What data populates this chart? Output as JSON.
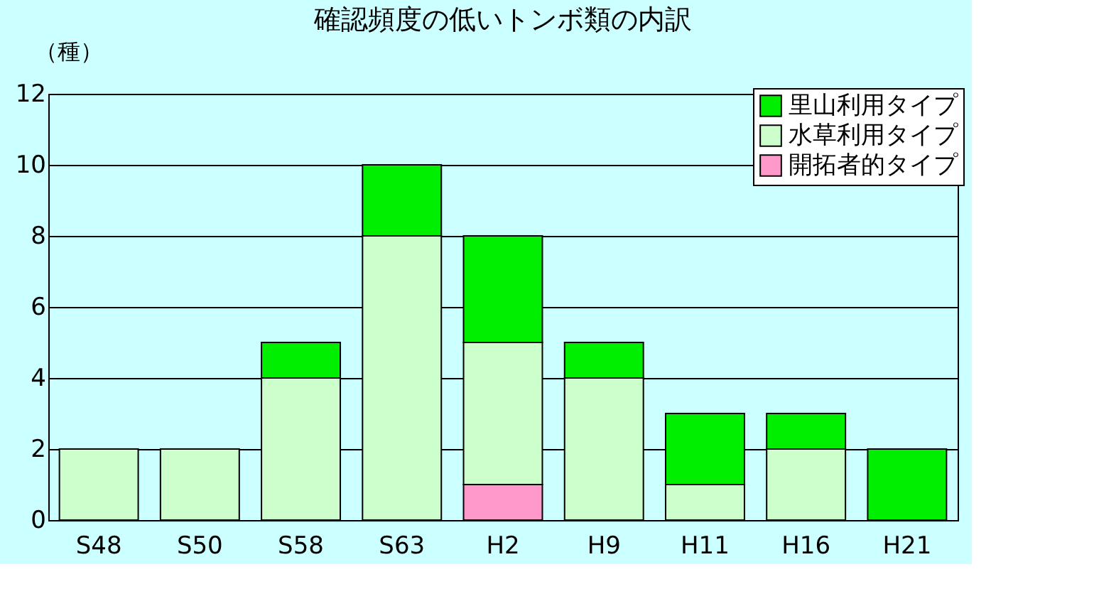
{
  "chart_data": {
    "type": "bar",
    "title": "確認頻度の低いトンボ類の内訳",
    "ylabel": "（種）",
    "stacked": true,
    "categories": [
      "S48",
      "S50",
      "S58",
      "S63",
      "H2",
      "H9",
      "H11",
      "H16",
      "H21"
    ],
    "series": [
      {
        "name": "開拓者的タイプ",
        "color": "#ff99cc",
        "values": [
          0,
          0,
          0,
          0,
          1,
          0,
          0,
          0,
          0
        ]
      },
      {
        "name": "水草利用タイプ",
        "color": "#ccffcc",
        "values": [
          2,
          2,
          4,
          8,
          4,
          4,
          1,
          2,
          0
        ]
      },
      {
        "name": "里山利用タイプ",
        "color": "#00ee00",
        "values": [
          0,
          0,
          1,
          2,
          3,
          1,
          2,
          1,
          2
        ]
      }
    ],
    "ylim": [
      0,
      12
    ],
    "yticks": [
      0,
      2,
      4,
      6,
      8,
      10,
      12
    ],
    "grid": "y",
    "legend": "top right"
  }
}
